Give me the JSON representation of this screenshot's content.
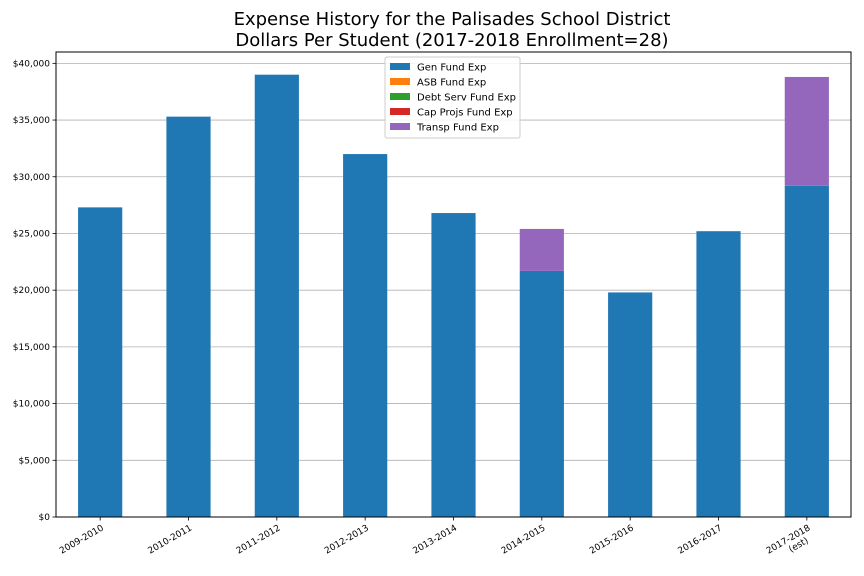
{
  "chart_data": {
    "type": "bar",
    "stacked": true,
    "title_line1": "Expense History for the Palisades School District",
    "title_line2": "Dollars Per Student (2017-2018 Enrollment=28)",
    "xlabel": "",
    "ylabel": "",
    "categories": [
      "2009-2010",
      "2010-2011",
      "2011-2012",
      "2012-2013",
      "2013-2014",
      "2014-2015",
      "2015-2016",
      "2016-2017",
      "2017-2018\n(est)"
    ],
    "series": [
      {
        "name": "Gen Fund Exp",
        "color": "#1f77b4",
        "values": [
          27300,
          35300,
          39000,
          32000,
          26800,
          21700,
          19800,
          25200,
          29200
        ]
      },
      {
        "name": "ASB Fund Exp",
        "color": "#ff7f0e",
        "values": [
          0,
          0,
          0,
          0,
          0,
          0,
          0,
          0,
          0
        ]
      },
      {
        "name": "Debt Serv Fund Exp",
        "color": "#2ca02c",
        "values": [
          0,
          0,
          0,
          0,
          0,
          0,
          0,
          0,
          0
        ]
      },
      {
        "name": "Cap Projs Fund Exp",
        "color": "#d62728",
        "values": [
          0,
          0,
          0,
          0,
          0,
          0,
          0,
          0,
          0
        ]
      },
      {
        "name": "Transp Fund Exp",
        "color": "#9467bd",
        "values": [
          0,
          0,
          0,
          0,
          0,
          3700,
          0,
          0,
          9600
        ]
      }
    ],
    "ylim": [
      0,
      41000
    ],
    "yticks": [
      0,
      5000,
      10000,
      15000,
      20000,
      25000,
      30000,
      35000,
      40000
    ],
    "ytick_labels": [
      "$0",
      "$5,000",
      "$10,000",
      "$15,000",
      "$20,000",
      "$25,000",
      "$30,000",
      "$35,000",
      "$40,000"
    ],
    "grid": "y",
    "legend_position": "top-center"
  }
}
